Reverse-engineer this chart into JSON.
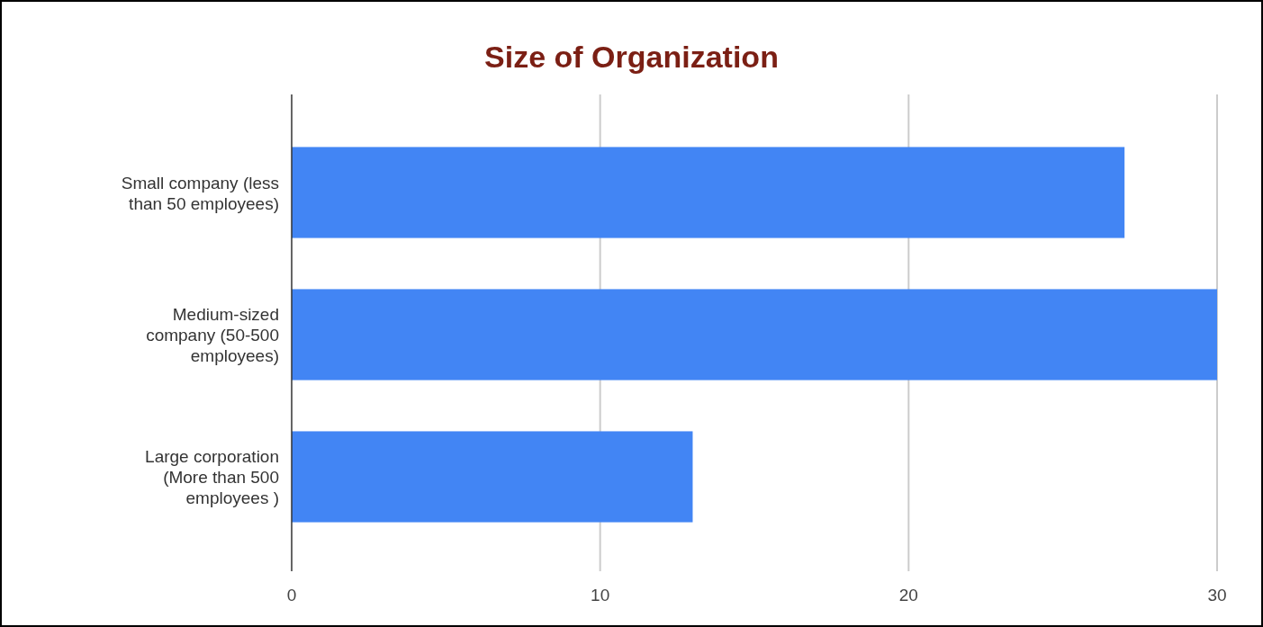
{
  "chart_data": {
    "type": "bar",
    "orientation": "horizontal",
    "title": "Size of Organization",
    "categories": [
      "Small company (less than 50 employees)",
      "Medium-sized company (50-500 employees)",
      "Large corporation (More than 500 employees )"
    ],
    "values": [
      27,
      30,
      13
    ],
    "color": "#4285f4",
    "xlim": [
      0,
      30
    ],
    "xticks": [
      0,
      10,
      20,
      30
    ],
    "grid": "x"
  }
}
